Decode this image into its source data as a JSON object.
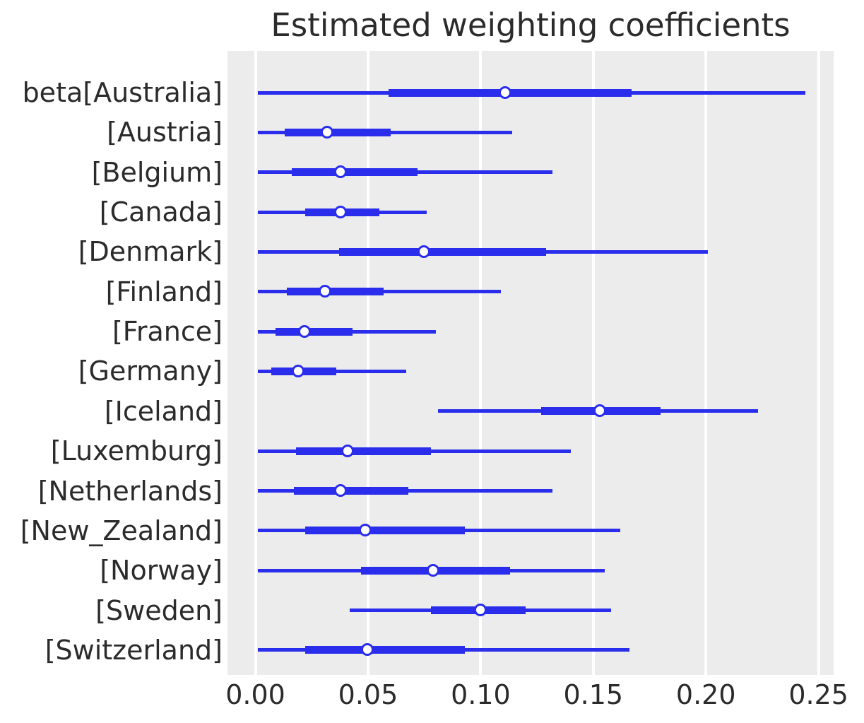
{
  "chart_data": {
    "type": "forest",
    "title": "Estimated weighting coefficients",
    "xlabel": "",
    "ylabel": "",
    "xlim": [
      -0.0124,
      0.2567
    ],
    "xticks": [
      0,
      0.05,
      0.1,
      0.15,
      0.2,
      0.25
    ],
    "xtick_labels": [
      "0.00",
      "0.05",
      "0.10",
      "0.15",
      "0.20",
      "0.25"
    ],
    "grid": "vertical gridlines",
    "legend": "none",
    "rows": [
      {
        "label": "beta[Australia]",
        "ci": [
          0.001,
          0.244
        ],
        "hdi": [
          0.059,
          0.167
        ],
        "point": 0.111
      },
      {
        "label": "[Austria]",
        "ci": [
          0.001,
          0.114
        ],
        "hdi": [
          0.013,
          0.06
        ],
        "point": 0.032
      },
      {
        "label": "[Belgium]",
        "ci": [
          0.001,
          0.132
        ],
        "hdi": [
          0.016,
          0.072
        ],
        "point": 0.038
      },
      {
        "label": "[Canada]",
        "ci": [
          0.001,
          0.076
        ],
        "hdi": [
          0.022,
          0.055
        ],
        "point": 0.038
      },
      {
        "label": "[Denmark]",
        "ci": [
          0.001,
          0.201
        ],
        "hdi": [
          0.037,
          0.129
        ],
        "point": 0.075
      },
      {
        "label": "[Finland]",
        "ci": [
          0.001,
          0.109
        ],
        "hdi": [
          0.014,
          0.057
        ],
        "point": 0.031
      },
      {
        "label": "[France]",
        "ci": [
          0.001,
          0.08
        ],
        "hdi": [
          0.009,
          0.043
        ],
        "point": 0.022
      },
      {
        "label": "[Germany]",
        "ci": [
          0.001,
          0.067
        ],
        "hdi": [
          0.007,
          0.036
        ],
        "point": 0.019
      },
      {
        "label": "[Iceland]",
        "ci": [
          0.081,
          0.223
        ],
        "hdi": [
          0.127,
          0.18
        ],
        "point": 0.153
      },
      {
        "label": "[Luxemburg]",
        "ci": [
          0.001,
          0.14
        ],
        "hdi": [
          0.018,
          0.078
        ],
        "point": 0.041
      },
      {
        "label": "[Netherlands]",
        "ci": [
          0.001,
          0.132
        ],
        "hdi": [
          0.017,
          0.068
        ],
        "point": 0.038
      },
      {
        "label": "[New_Zealand]",
        "ci": [
          0.001,
          0.162
        ],
        "hdi": [
          0.022,
          0.093
        ],
        "point": 0.049
      },
      {
        "label": "[Norway]",
        "ci": [
          0.001,
          0.155
        ],
        "hdi": [
          0.047,
          0.113
        ],
        "point": 0.079
      },
      {
        "label": "[Sweden]",
        "ci": [
          0.042,
          0.158
        ],
        "hdi": [
          0.078,
          0.12
        ],
        "point": 0.1
      },
      {
        "label": "[Switzerland]",
        "ci": [
          0.001,
          0.166
        ],
        "hdi": [
          0.022,
          0.093
        ],
        "point": 0.05
      }
    ],
    "colors": {
      "line": "#2a2eec",
      "marker_fill": "#ffffff",
      "panel_background": "#ececec",
      "gridline": "#ffffff",
      "text": "#2b2b2b"
    }
  }
}
